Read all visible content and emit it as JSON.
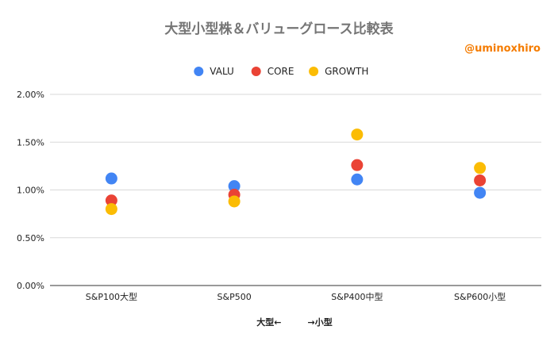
{
  "chart_data": {
    "type": "scatter",
    "title": "大型小型株＆バリューグロース比較表",
    "watermark": "@uminoxhiro",
    "categories": [
      "S&P100大型",
      "S&P500",
      "S&P400中型",
      "S&P600小型"
    ],
    "series": [
      {
        "name": "VALU",
        "color": "#4285f4",
        "values": [
          1.12,
          1.04,
          1.11,
          0.97
        ]
      },
      {
        "name": "CORE",
        "color": "#ea4335",
        "values": [
          0.89,
          0.95,
          1.26,
          1.1
        ]
      },
      {
        "name": "GROWTH",
        "color": "#fbbc04",
        "values": [
          0.8,
          0.88,
          1.58,
          1.23
        ]
      }
    ],
    "yticks": [
      "0.00%",
      "0.50%",
      "1.00%",
      "1.50%",
      "2.00%"
    ],
    "ylim": [
      0,
      2.0
    ],
    "xlabel": "大型←　　　→小型",
    "ylabel": "",
    "legend_position": "top",
    "grid": true
  }
}
